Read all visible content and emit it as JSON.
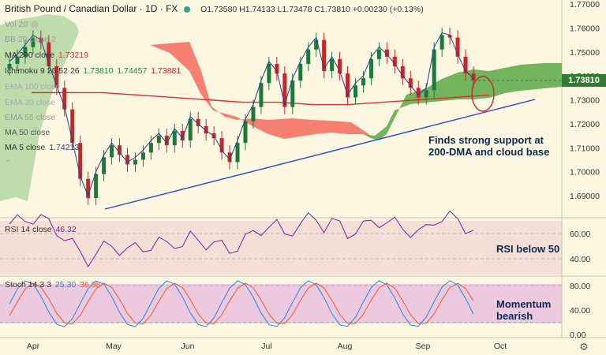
{
  "header": {
    "title": "British Pound / Canadian Dollar · 1D · FX",
    "ohlc": "O1.73580 H1.74133 L1.73478 C1.73810 +0.00230 (+0.13%)"
  },
  "legend": {
    "vol": "Vol 20",
    "bb": "BB 20 close 2",
    "ma200_label": "MA 200 close",
    "ma200_value": "1.73219",
    "ichimoku_label": "Ichimoku 9 26 52 26",
    "ichi_v1": "1.73810",
    "ichi_v2": "1.74457",
    "ichi_v3": "1.73881",
    "ema_hidden1": "EMA 100 close",
    "ema_hidden2": "EMA 30 close",
    "ema55": "EMA 55 close",
    "ma50": "MA 50 close",
    "ma5_label": "MA 5 close",
    "ma5_value": "1.74213"
  },
  "current_price": "1.73810",
  "annotations": {
    "support_line1": "Finds strong support at",
    "support_line2": "200-DMA and cloud base",
    "rsi_note": "RSI below 50",
    "stoch_note1": "Momentum",
    "stoch_note2": "bearish"
  },
  "rsi_legend": {
    "label": "RSI 14 close",
    "value": "46.32"
  },
  "stoch_legend": {
    "label": "Stoch 14 3 3",
    "k": "25.30",
    "d": "36.98"
  },
  "colors": {
    "up": "#1b7a3a",
    "down": "#c62828",
    "cloud_bull": "#5aa845",
    "cloud_bear": "#f36b5e",
    "ma200": "#d9302c",
    "ma5": "#1f3f9a",
    "trend": "#2a4ec9",
    "rsi": "#7b1fa2",
    "stoch_k": "#1e88e5",
    "stoch_d": "#ef5a2a"
  },
  "chart_data": {
    "type": "candlestick",
    "title": "British Pound / Canadian Dollar · 1D · FX",
    "price_axis": {
      "min": 1.68,
      "max": 1.77,
      "ticks": [
        "1.77000",
        "1.76000",
        "1.75000",
        "1.74000",
        "1.73000",
        "1.72000",
        "1.71000",
        "1.70000",
        "1.69000"
      ]
    },
    "x_ticks": [
      "Apr",
      "May",
      "Jun",
      "Jul",
      "Aug",
      "Sep",
      "Oct"
    ],
    "rsi_ticks": [
      "60.00",
      "40.00"
    ],
    "stoch_ticks": [
      "80.00",
      "40.00",
      "0.00"
    ],
    "approx_close": [
      1.745,
      1.748,
      1.752,
      1.756,
      1.754,
      1.744,
      1.735,
      1.726,
      1.712,
      1.697,
      1.689,
      1.699,
      1.706,
      1.711,
      1.707,
      1.703,
      1.705,
      1.708,
      1.712,
      1.715,
      1.711,
      1.717,
      1.713,
      1.722,
      1.719,
      1.716,
      1.714,
      1.708,
      1.704,
      1.712,
      1.721,
      1.727,
      1.737,
      1.745,
      1.741,
      1.727,
      1.738,
      1.745,
      1.751,
      1.755,
      1.742,
      1.747,
      1.741,
      1.731,
      1.736,
      1.739,
      1.747,
      1.751,
      1.748,
      1.744,
      1.739,
      1.735,
      1.731,
      1.734,
      1.751,
      1.757,
      1.756,
      1.748,
      1.741,
      1.738
    ],
    "ma200": [
      1.733,
      1.733,
      1.733,
      1.732,
      1.731,
      1.73,
      1.729,
      1.729,
      1.728,
      1.728,
      1.729,
      1.73,
      1.731,
      1.732
    ],
    "rsi_note": "RSI below 50",
    "rsi_current": 46.32,
    "stoch_k": 25.3,
    "stoch_d": 36.98
  }
}
